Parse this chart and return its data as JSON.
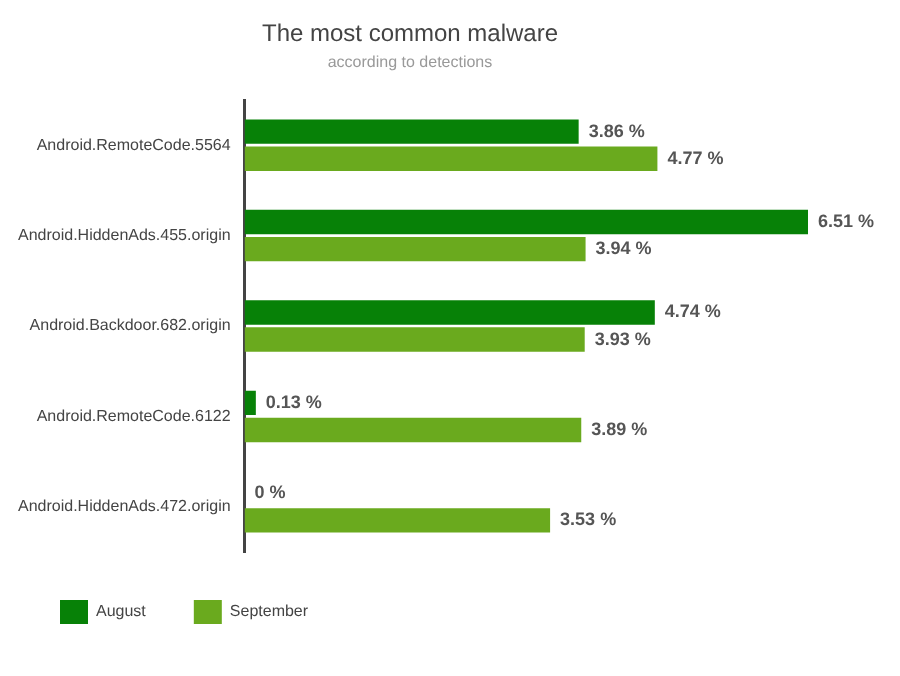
{
  "chart_data": {
    "type": "bar",
    "orientation": "horizontal",
    "title": "The most common malware",
    "subtitle": "according to detections",
    "categories": [
      "Android.RemoteCode.5564",
      "Android.HiddenAds.455.origin",
      "Android.Backdoor.682.origin",
      "Android.RemoteCode.6122",
      "Android.HiddenAds.472.origin"
    ],
    "series": [
      {
        "name": "August",
        "color": "#078107",
        "values": [
          3.86,
          6.51,
          4.74,
          0.13,
          0
        ],
        "value_labels": [
          "3.86 %",
          "6.51 %",
          "4.74 %",
          "0.13 %",
          "0 %"
        ]
      },
      {
        "name": "September",
        "color": "#6aaa1e",
        "values": [
          4.77,
          3.94,
          3.93,
          3.89,
          3.53
        ],
        "value_labels": [
          "4.77 %",
          "3.94 %",
          "3.93 %",
          "3.89 %",
          "3.53 %"
        ]
      }
    ],
    "legend": "bottom left",
    "grid": false
  }
}
